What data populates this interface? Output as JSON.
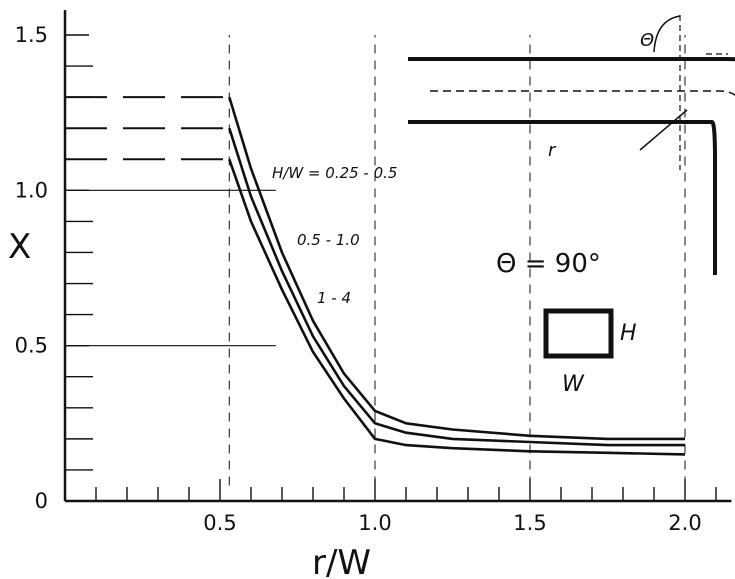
{
  "chart_data": {
    "type": "line",
    "title": "",
    "xlabel": "r/W",
    "ylabel": "X",
    "xlim": [
      0,
      2.15
    ],
    "ylim": [
      0,
      1.58
    ],
    "x_ticks": [
      "0.5",
      "1.0",
      "1.5",
      "2.0"
    ],
    "y_ticks": [
      "0",
      "0.5",
      "1.0",
      "1.5"
    ],
    "grid": false,
    "series": [
      {
        "name": "H/W = 0.25 - 0.5",
        "x": [
          0.53,
          0.6,
          0.7,
          0.8,
          0.9,
          1.0,
          1.1,
          1.25,
          1.5,
          1.75,
          2.0
        ],
        "y": [
          1.3,
          1.07,
          0.8,
          0.58,
          0.41,
          0.29,
          0.25,
          0.23,
          0.21,
          0.2,
          0.2
        ],
        "level_before": 1.3
      },
      {
        "name": "0.5 - 1.0",
        "x": [
          0.53,
          0.6,
          0.7,
          0.8,
          0.9,
          1.0,
          1.1,
          1.25,
          1.5,
          1.75,
          2.0
        ],
        "y": [
          1.2,
          0.98,
          0.74,
          0.53,
          0.37,
          0.25,
          0.22,
          0.2,
          0.19,
          0.18,
          0.18
        ],
        "level_before": 1.2
      },
      {
        "name": "1 - 4",
        "x": [
          0.53,
          0.6,
          0.7,
          0.8,
          0.9,
          1.0,
          1.1,
          1.25,
          1.5,
          1.75,
          2.0
        ],
        "y": [
          1.1,
          0.9,
          0.68,
          0.48,
          0.33,
          0.2,
          0.18,
          0.17,
          0.16,
          0.155,
          0.15
        ],
        "level_before": 1.1
      }
    ],
    "annotations": {
      "theta": "Θ = 90°",
      "height_label": "H",
      "width_label": "W",
      "radius_label": "r",
      "bend_angle_label": "Θ"
    }
  }
}
